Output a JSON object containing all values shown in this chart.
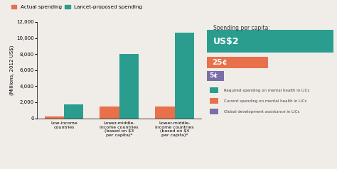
{
  "bar_categories": [
    "Low-income\ncountries",
    "Lower-middle-\nincome countries\n(based on $3\nper capita)*",
    "Lower-middle-\nincome countries\n(based on $4\nper capita)*"
  ],
  "actual_spending": [
    200,
    1450,
    1450
  ],
  "lancet_spending": [
    1700,
    8000,
    10700
  ],
  "actual_color": "#E8704A",
  "lancet_color": "#2A9D8F",
  "purple_color": "#7B6EA8",
  "ylabel": "(Millions, 2012 US$)",
  "ylim": [
    0,
    12000
  ],
  "yticks": [
    0,
    2000,
    4000,
    6000,
    8000,
    10000,
    12000
  ],
  "legend_labels": [
    "Actual spending",
    "Lancet-proposed spending"
  ],
  "right_title": "Spending per capita:",
  "background_color": "#f0ede8",
  "right_bg": "#ffffff",
  "bar_width": 0.35
}
